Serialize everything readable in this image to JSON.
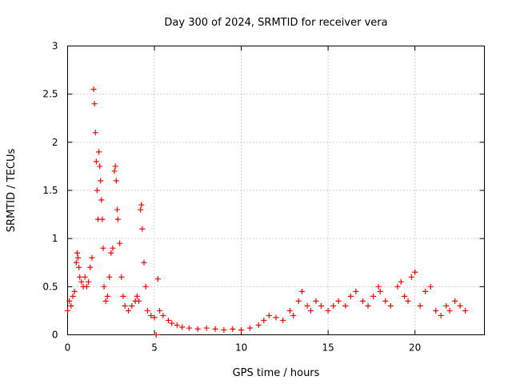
{
  "chart_data": {
    "type": "scatter",
    "title": "Day 300 of 2024, SRMTID for receiver vera",
    "xlabel": "GPS time / hours",
    "ylabel": "SRMTID / TECUs",
    "xlim": [
      0,
      24
    ],
    "ylim": [
      0,
      3
    ],
    "xticks": [
      0,
      5,
      10,
      15,
      20
    ],
    "xtick_labels": [
      "0",
      "5",
      "10",
      "15",
      "20"
    ],
    "yticks": [
      0,
      0.5,
      1,
      1.5,
      2,
      2.5,
      3
    ],
    "ytick_labels": [
      "0",
      "0.5",
      "1",
      "1.5",
      "2",
      "2.5",
      "3"
    ],
    "grid": true,
    "marker": "+",
    "series": [
      {
        "name": "SRMTID",
        "color": "#ff0000",
        "x": [
          0.0,
          0.1,
          0.2,
          0.3,
          0.4,
          0.5,
          0.55,
          0.6,
          0.65,
          0.7,
          0.8,
          0.9,
          1.0,
          1.1,
          1.2,
          1.3,
          1.4,
          1.5,
          1.55,
          1.6,
          1.65,
          1.7,
          1.75,
          1.8,
          1.85,
          1.9,
          1.95,
          2.0,
          2.05,
          2.1,
          2.2,
          2.3,
          2.4,
          2.5,
          2.6,
          2.7,
          2.75,
          2.8,
          2.85,
          2.9,
          3.0,
          3.1,
          3.2,
          3.3,
          3.5,
          3.7,
          3.9,
          4.0,
          4.1,
          4.2,
          4.25,
          4.3,
          4.4,
          4.5,
          4.6,
          4.8,
          5.0,
          5.1,
          5.2,
          5.3,
          5.5,
          5.8,
          6.0,
          6.3,
          6.6,
          7.0,
          7.5,
          8.0,
          8.5,
          9.0,
          9.5,
          10.0,
          10.5,
          11.0,
          11.3,
          11.6,
          12.0,
          12.4,
          12.8,
          13.0,
          13.3,
          13.5,
          13.8,
          14.0,
          14.3,
          14.6,
          15.0,
          15.3,
          15.6,
          16.0,
          16.3,
          16.6,
          17.0,
          17.3,
          17.6,
          17.9,
          18.0,
          18.3,
          18.6,
          19.0,
          19.2,
          19.4,
          19.6,
          19.8,
          20.0,
          20.3,
          20.6,
          20.9,
          21.2,
          21.5,
          21.8,
          22.0,
          22.3,
          22.6,
          22.9
        ],
        "y": [
          0.25,
          0.35,
          0.3,
          0.4,
          0.45,
          0.75,
          0.85,
          0.8,
          0.7,
          0.6,
          0.55,
          0.5,
          0.6,
          0.5,
          0.55,
          0.7,
          0.8,
          2.55,
          2.4,
          2.1,
          1.8,
          1.5,
          1.2,
          1.9,
          1.75,
          1.6,
          1.4,
          1.2,
          0.9,
          0.5,
          0.35,
          0.4,
          0.6,
          0.85,
          0.9,
          1.7,
          1.75,
          1.6,
          1.3,
          1.2,
          0.95,
          0.6,
          0.4,
          0.3,
          0.25,
          0.3,
          0.35,
          0.4,
          0.35,
          1.3,
          1.35,
          1.1,
          0.75,
          0.5,
          0.25,
          0.2,
          0.18,
          0.0,
          0.58,
          0.25,
          0.2,
          0.15,
          0.12,
          0.1,
          0.08,
          0.07,
          0.06,
          0.07,
          0.06,
          0.05,
          0.06,
          0.05,
          0.07,
          0.1,
          0.15,
          0.2,
          0.18,
          0.15,
          0.25,
          0.2,
          0.35,
          0.45,
          0.3,
          0.25,
          0.35,
          0.3,
          0.25,
          0.3,
          0.35,
          0.3,
          0.4,
          0.45,
          0.35,
          0.3,
          0.4,
          0.5,
          0.45,
          0.35,
          0.3,
          0.5,
          0.55,
          0.4,
          0.35,
          0.6,
          0.65,
          0.3,
          0.45,
          0.5,
          0.25,
          0.2,
          0.3,
          0.25,
          0.35,
          0.3,
          0.25
        ]
      }
    ]
  }
}
